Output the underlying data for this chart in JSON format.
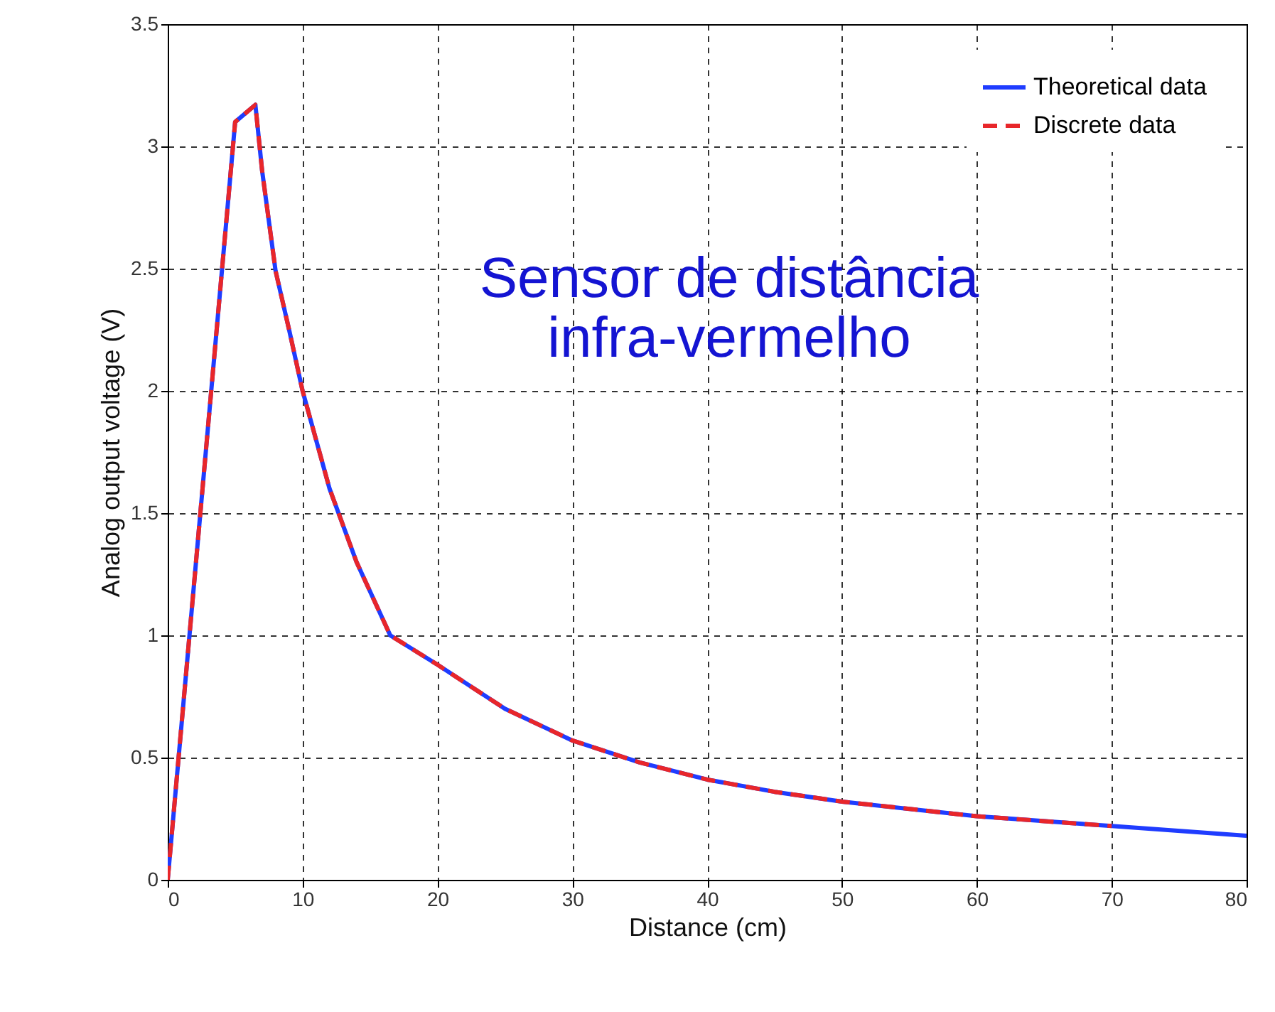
{
  "chart_data": {
    "type": "line",
    "xlabel": "Distance (cm)",
    "ylabel": "Analog output voltage (V)",
    "annotations": [
      "Sensor de distância\ninfra-vermelho"
    ],
    "xlim": [
      0,
      80
    ],
    "xticks": [
      0,
      10,
      20,
      30,
      40,
      50,
      60,
      70,
      80
    ],
    "ylim": [
      0,
      3.5
    ],
    "yticks": [
      0,
      0.5,
      1,
      1.5,
      2,
      2.5,
      3,
      3.5
    ],
    "grid": true,
    "legend": "top right",
    "series": [
      {
        "name": "Theoretical data",
        "color": "#1f3cff",
        "line_style": "solid",
        "x": [
          0,
          5,
          6.5,
          7,
          8,
          9,
          10,
          12,
          14,
          16.5,
          20,
          25,
          30,
          35,
          40,
          45,
          50,
          60,
          70,
          80
        ],
        "values": [
          0,
          3.1,
          3.17,
          2.9,
          2.49,
          2.25,
          2.0,
          1.6,
          1.3,
          1.0,
          0.88,
          0.7,
          0.57,
          0.48,
          0.41,
          0.36,
          0.32,
          0.26,
          0.22,
          0.18
        ]
      },
      {
        "name": "Discrete data",
        "color": "#e8262a",
        "line_style": "dashed",
        "x": [
          0,
          5,
          6.5,
          7,
          8,
          9,
          10,
          12,
          14,
          16.5,
          20,
          25,
          30,
          35,
          40,
          45,
          50,
          60,
          70
        ],
        "values": [
          0,
          3.1,
          3.17,
          2.9,
          2.49,
          2.25,
          2.0,
          1.6,
          1.3,
          1.0,
          0.88,
          0.7,
          0.57,
          0.48,
          0.41,
          0.36,
          0.32,
          0.26,
          0.22
        ]
      }
    ]
  }
}
